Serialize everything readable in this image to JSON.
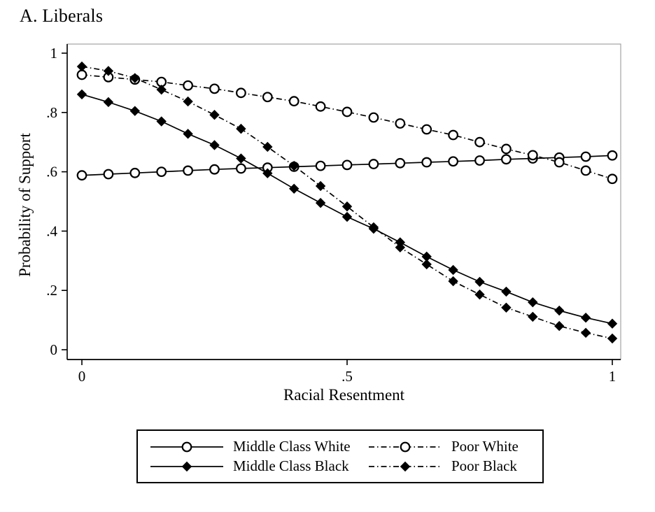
{
  "panel_title": "A. Liberals",
  "chart_data": {
    "type": "line",
    "title": "A. Liberals",
    "xlabel": "Racial Resentment",
    "ylabel": "Probability of Support",
    "xlim": [
      0,
      1
    ],
    "ylim": [
      0,
      1
    ],
    "grid": false,
    "legend_position": "bottom",
    "x_ticks": [
      {
        "value": 0,
        "label": "0"
      },
      {
        "value": 0.5,
        "label": ".5"
      },
      {
        "value": 1,
        "label": "1"
      }
    ],
    "y_ticks": [
      {
        "value": 0,
        "label": "0"
      },
      {
        "value": 0.2,
        "label": ".2"
      },
      {
        "value": 0.4,
        "label": ".4"
      },
      {
        "value": 0.6,
        "label": ".6"
      },
      {
        "value": 0.8,
        "label": ".8"
      },
      {
        "value": 1,
        "label": "1"
      }
    ],
    "x": [
      0,
      0.05,
      0.1,
      0.15,
      0.2,
      0.25,
      0.3,
      0.35,
      0.4,
      0.45,
      0.5,
      0.55,
      0.6,
      0.65,
      0.7,
      0.75,
      0.8,
      0.85,
      0.9,
      0.95,
      1
    ],
    "series": [
      {
        "name": "Middle Class White",
        "marker": "open-circle",
        "line_style": "solid",
        "values": [
          0.588,
          0.592,
          0.596,
          0.6,
          0.604,
          0.608,
          0.611,
          0.614,
          0.617,
          0.62,
          0.623,
          0.626,
          0.629,
          0.632,
          0.635,
          0.638,
          0.642,
          0.645,
          0.648,
          0.651,
          0.655
        ]
      },
      {
        "name": "Poor White",
        "marker": "open-circle",
        "line_style": "dash-dot",
        "values": [
          0.927,
          0.919,
          0.911,
          0.903,
          0.891,
          0.88,
          0.866,
          0.852,
          0.838,
          0.82,
          0.802,
          0.783,
          0.763,
          0.743,
          0.724,
          0.7,
          0.677,
          0.656,
          0.632,
          0.604,
          0.576
        ]
      },
      {
        "name": "Middle Class Black",
        "marker": "filled-diamond",
        "line_style": "solid",
        "values": [
          0.861,
          0.835,
          0.805,
          0.77,
          0.728,
          0.69,
          0.645,
          0.595,
          0.543,
          0.495,
          0.448,
          0.408,
          0.362,
          0.314,
          0.269,
          0.229,
          0.196,
          0.16,
          0.132,
          0.108,
          0.088
        ]
      },
      {
        "name": "Poor Black",
        "marker": "filled-diamond",
        "line_style": "dash-dot",
        "values": [
          0.955,
          0.94,
          0.916,
          0.877,
          0.837,
          0.792,
          0.745,
          0.684,
          0.62,
          0.552,
          0.483,
          0.413,
          0.345,
          0.288,
          0.231,
          0.186,
          0.142,
          0.111,
          0.08,
          0.057,
          0.038
        ]
      }
    ]
  },
  "colors": {
    "foreground": "#000000",
    "frame_light": "#a3a3a3",
    "background": "#ffffff"
  }
}
